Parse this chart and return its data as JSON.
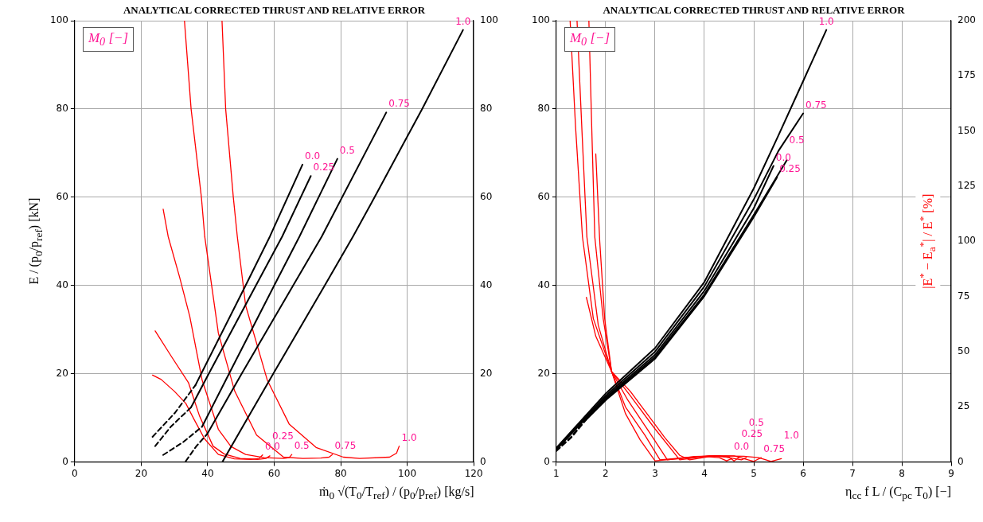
{
  "chart_data": [
    {
      "type": "line",
      "title": "ANALYTICAL CORRECTED THRUST AND RELATIVE ERROR",
      "xlabel": "ṁ$_{0}$ √(T$_{0}$/T$_{ref}$) / (p$_{0}$/p$_{ref}$)  [kg/s]",
      "ylabel": "E / (p$_{0}$/p$_{ref}$)  [kN]",
      "legend_title": "M$_{0}$ [−]",
      "xlim": [
        0,
        120
      ],
      "xticks": [
        0,
        20,
        40,
        60,
        80,
        100,
        120
      ],
      "ylim": [
        0,
        100
      ],
      "yticks": [
        0,
        20,
        40,
        60,
        80,
        100
      ],
      "y2lim": [
        0,
        100
      ],
      "y2ticks": [
        0,
        20,
        40,
        60,
        80,
        100
      ],
      "grid": true,
      "marker": "none",
      "series": [
        {
          "color": "#000000",
          "x": [
            36.3,
            51.4,
            58.7,
            68.5
          ],
          "values": [
            17.4,
            40,
            51.1,
            67.4
          ]
        },
        {
          "color": "#000000",
          "x": [
            35,
            40.3,
            54.5,
            62.4,
            71
          ],
          "values": [
            12.4,
            20,
            40,
            51.1,
            64.8
          ]
        },
        {
          "color": "#000000",
          "x": [
            38.3,
            46.4,
            60,
            67.6,
            79
          ],
          "values": [
            8,
            20,
            40,
            51.1,
            68.7
          ]
        },
        {
          "color": "#000000",
          "x": [
            39.9,
            50.2,
            65.7,
            74.3,
            93.7
          ],
          "values": [
            6.4,
            20,
            40,
            51.1,
            79.2
          ]
        },
        {
          "color": "#000000",
          "x": [
            44.4,
            59.7,
            75.2,
            83.7,
            90.2,
            104.5,
            116.8
          ],
          "values": [
            0,
            20,
            40,
            51.1,
            60,
            80,
            97.9
          ]
        },
        {
          "color": "#000000",
          "line_style": "dashed",
          "x": [
            23.4,
            30.1,
            36.3
          ],
          "values": [
            5.7,
            11.1,
            17.4
          ]
        },
        {
          "color": "#000000",
          "line_style": "dashed",
          "x": [
            24.2,
            28.9,
            35
          ],
          "values": [
            3.6,
            8,
            12.4
          ]
        },
        {
          "color": "#000000",
          "line_style": "dashed",
          "x": [
            26.6,
            32.6,
            38.3
          ],
          "values": [
            1.6,
            4.5,
            8
          ]
        },
        {
          "color": "#000000",
          "line_style": "dashed",
          "x": [
            33.4,
            36.6,
            39.9
          ],
          "values": [
            0.2,
            3.6,
            6.4
          ]
        },
        {
          "color": "#ff0000",
          "axis": "y2",
          "x": [
            23.4,
            26,
            30,
            33.4,
            36,
            39.1,
            43.2,
            48,
            53,
            55.5,
            56.5
          ],
          "values": [
            19.7,
            18.7,
            16,
            13.3,
            9.5,
            5.2,
            1.7,
            0.7,
            0.6,
            0.8,
            1.6
          ]
        },
        {
          "color": "#ff0000",
          "axis": "y2",
          "x": [
            24.2,
            29,
            34.2,
            37.5,
            41.6,
            45,
            49.8,
            55,
            57.5,
            58.7
          ],
          "values": [
            29.7,
            24,
            18,
            10.5,
            3.6,
            1.8,
            0.8,
            0.6,
            0.8,
            1.4
          ]
        },
        {
          "color": "#ff0000",
          "axis": "y2",
          "x": [
            26.6,
            28.1,
            31.5,
            34.6,
            38.3,
            43.2,
            47,
            51.4,
            57,
            62.8,
            64.5,
            65.3
          ],
          "values": [
            57.3,
            51.1,
            42,
            33,
            18.6,
            7.4,
            3.5,
            1.7,
            1.0,
            0.8,
            1.0,
            1.7
          ]
        },
        {
          "color": "#ff0000",
          "axis": "y2",
          "x": [
            33,
            35,
            38.1,
            39.1,
            43.2,
            48.1,
            54.7,
            62.8,
            68.6,
            74,
            76.5,
            77.5
          ],
          "values": [
            100,
            80,
            60,
            51.1,
            29.2,
            16.1,
            6.1,
            1.1,
            0.8,
            0.9,
            1.1,
            1.7
          ]
        },
        {
          "color": "#ff0000",
          "axis": "y2",
          "x": [
            44.3,
            45.4,
            47.7,
            48.9,
            51.4,
            57.9,
            64.5,
            72.6,
            80.8,
            85.7,
            94.7,
            96.8,
            97.6
          ],
          "values": [
            100,
            80,
            60,
            51.1,
            35.5,
            18.6,
            8.6,
            3.3,
            1.1,
            0.8,
            1.1,
            2,
            3.6
          ]
        }
      ],
      "annotations": [
        {
          "text": "0.0",
          "x": 68.5,
          "y": 67.4
        },
        {
          "text": "0.25",
          "x": 71,
          "y": 64.8
        },
        {
          "text": "0.5",
          "x": 79,
          "y": 68.7
        },
        {
          "text": "0.75",
          "x": 93.7,
          "y": 79.2
        },
        {
          "text": "1.0",
          "x": 116.8,
          "y": 97.9
        },
        {
          "text": "0.0",
          "x": 56.5,
          "y": 1.6
        },
        {
          "text": "0.25",
          "x": 58.7,
          "y": 1.4
        },
        {
          "text": "0.5",
          "x": 65.3,
          "y": 1.7
        },
        {
          "text": "0.75",
          "x": 77.5,
          "y": 1.7
        },
        {
          "text": "1.0",
          "x": 97.6,
          "y": 3.6
        }
      ]
    },
    {
      "type": "line",
      "title": "ANALYTICAL CORRECTED THRUST AND RELATIVE ERROR",
      "xlabel": "η$_{cc}$ f L / (C$_{pc}$ T$_{0}$)  [−]",
      "y2label": "|E$^{*}$ − E$_{a}$$^{*}$| / E$^{*}$  [%]",
      "legend_title": "M$_{0}$ [−]",
      "xlim": [
        1,
        9
      ],
      "xticks": [
        1,
        2,
        3,
        4,
        5,
        6,
        7,
        8,
        9
      ],
      "ylim": [
        0,
        100
      ],
      "yticks": [
        0,
        20,
        40,
        60,
        80,
        100
      ],
      "y2lim": [
        0,
        200
      ],
      "y2ticks": [
        0,
        25,
        50,
        75,
        100,
        125,
        150,
        175,
        200
      ],
      "grid": true,
      "marker": "none",
      "series": [
        {
          "color": "#000000",
          "x": [
            1,
            2,
            3,
            4,
            5,
            5.4
          ],
          "values": [
            2.8,
            14.6,
            24.3,
            38.8,
            57.5,
            67.1
          ]
        },
        {
          "color": "#000000",
          "x": [
            1.6,
            2,
            3,
            4,
            5,
            5.47
          ],
          "values": [
            9.5,
            14,
            23.4,
            37.6,
            55.5,
            64.5
          ]
        },
        {
          "color": "#000000",
          "x": [
            1.6,
            2,
            3,
            4,
            5,
            5.67
          ],
          "values": [
            9.7,
            14.3,
            23.8,
            38,
            56,
            68.4
          ]
        },
        {
          "color": "#000000",
          "x": [
            1,
            2,
            3,
            4,
            5,
            5.5,
            6
          ],
          "values": [
            3,
            15,
            25,
            39.8,
            59.5,
            70.5,
            79
          ]
        },
        {
          "color": "#000000",
          "x": [
            1,
            2,
            3,
            4,
            5,
            5.5,
            6,
            6.47
          ],
          "values": [
            3.2,
            15.5,
            25.8,
            40.8,
            62,
            74,
            86.3,
            97.9
          ]
        },
        {
          "color": "#000000",
          "line_style": "dashed",
          "x": [
            1,
            1.3,
            1.6
          ],
          "values": [
            2.5,
            5.5,
            9.5
          ]
        },
        {
          "color": "#000000",
          "line_style": "dashed",
          "x": [
            1,
            1.3,
            1.6
          ],
          "values": [
            2.6,
            5.7,
            9.7
          ]
        },
        {
          "color": "#ff0000",
          "axis": "y2",
          "x": [
            1.28,
            1.39,
            1.53,
            1.75,
            2.12,
            2.4,
            2.7,
            3,
            3.5,
            4,
            4.3,
            4.45,
            4.55
          ],
          "values": [
            200,
            152,
            102,
            65,
            41,
            22,
            10,
            0.5,
            1.5,
            2.5,
            2,
            0.5,
            1.5
          ]
        },
        {
          "color": "#ff0000",
          "axis": "y2",
          "x": [
            1.42,
            1.52,
            1.62,
            1.85,
            2.12,
            2.4,
            2.8,
            3.1,
            3.6,
            4.1,
            4.5,
            4.6,
            4.7
          ],
          "values": [
            200,
            150,
            102,
            62,
            41,
            25,
            12,
            1,
            2,
            2.8,
            2.2,
            0.5,
            2
          ]
        },
        {
          "color": "#ff0000",
          "axis": "y2",
          "x": [
            1.66,
            1.72,
            1.78,
            1.95,
            2.12,
            2.45,
            2.9,
            3.25,
            3.8,
            4.3,
            4.75,
            4.85
          ],
          "values": [
            200,
            150,
            102,
            65,
            41,
            28,
            13,
            1,
            2.5,
            2.8,
            1,
            2
          ]
        },
        {
          "color": "#ff0000",
          "axis": "y2",
          "x": [
            1.61,
            1.8,
            2.12,
            2.5,
            3,
            3.5,
            4.1,
            4.6,
            5,
            5.15
          ],
          "values": [
            74.6,
            57,
            41,
            30,
            15,
            1,
            2.8,
            2.8,
            0.3,
            2
          ]
        },
        {
          "color": "#ff0000",
          "axis": "y2",
          "x": [
            1.8,
            1.88,
            1.98,
            2.12,
            2.5,
            2.9,
            3.2,
            3.5,
            3.7,
            4.2,
            4.8,
            5.1,
            5.35,
            5.56
          ],
          "values": [
            139.6,
            100,
            65,
            41,
            32,
            20,
            11,
            3,
            1,
            2.8,
            2.6,
            2,
            0.3,
            1.5
          ]
        }
      ],
      "annotations": [
        {
          "text": "0.0",
          "x": 5.4,
          "y": 67.1
        },
        {
          "text": "0.25",
          "x": 5.47,
          "y": 64.5
        },
        {
          "text": "0.5",
          "x": 5.67,
          "y": 68.4
        },
        {
          "text": "0.75",
          "x": 6,
          "y": 79
        },
        {
          "text": "1.0",
          "x": 6.47,
          "y": 97.9
        },
        {
          "text": "0.0",
          "x": 4.55,
          "y": 1.5
        },
        {
          "text": "0.25",
          "x": 4.7,
          "y": 2
        },
        {
          "text": "0.5",
          "x": 4.85,
          "y": 2
        },
        {
          "text": "0.75",
          "x": 5.15,
          "y": 1
        },
        {
          "text": "1.0",
          "x": 5.56,
          "y": 1.5
        }
      ]
    }
  ]
}
